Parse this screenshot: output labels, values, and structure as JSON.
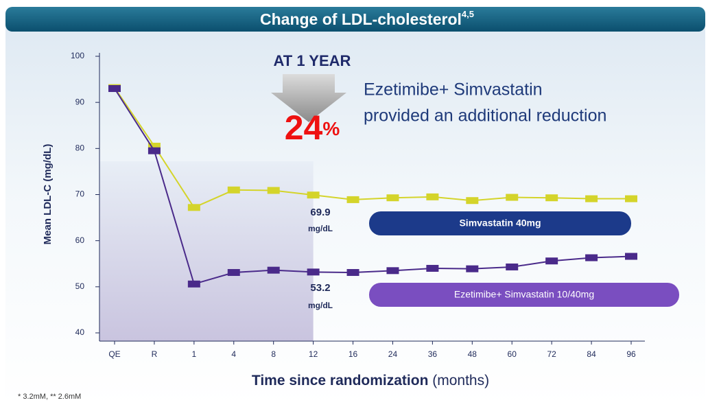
{
  "chart_data": {
    "type": "line",
    "title": "Change of LDL-cholesterol",
    "title_superscript": "4,5",
    "y_label": "Mean LDL-C (mg/dL)",
    "x_label": "Time since randomization",
    "x_label_unit": "(months)",
    "footnote": "* 3.2mM, ** 2.6mM",
    "annotations": {
      "period": "AT 1 YEAR",
      "reduction_number": "24",
      "reduction_unit": "%",
      "message_line1": "Ezetimibe+ Simvastatin",
      "message_line2": "provided an additional reduction",
      "simva_value": "69.9",
      "simva_unit": "mg/dL",
      "combo_value": "53.2",
      "combo_unit": "mg/dL"
    },
    "categories": [
      "QE",
      "R",
      "1",
      "4",
      "8",
      "12",
      "16",
      "24",
      "36",
      "48",
      "60",
      "72",
      "84",
      "96"
    ],
    "series": [
      {
        "name": "Simvastatin 40mg",
        "color": "#d4d42a",
        "values": [
          93.2,
          80.5,
          67.2,
          71.0,
          70.9,
          69.9,
          68.9,
          69.3,
          69.5,
          68.7,
          69.4,
          69.3,
          69.1,
          69.1
        ]
      },
      {
        "name": "Ezetimibe+ Simvastatin 10/40mg",
        "color": "#4a2a8a",
        "values": [
          93.0,
          79.5,
          50.6,
          53.1,
          53.6,
          53.2,
          53.1,
          53.5,
          54.0,
          53.9,
          54.3,
          55.6,
          56.3,
          56.6
        ]
      }
    ],
    "ylim": [
      40,
      100
    ],
    "yticks": [
      40,
      50,
      60,
      70,
      80,
      90,
      100
    ]
  }
}
